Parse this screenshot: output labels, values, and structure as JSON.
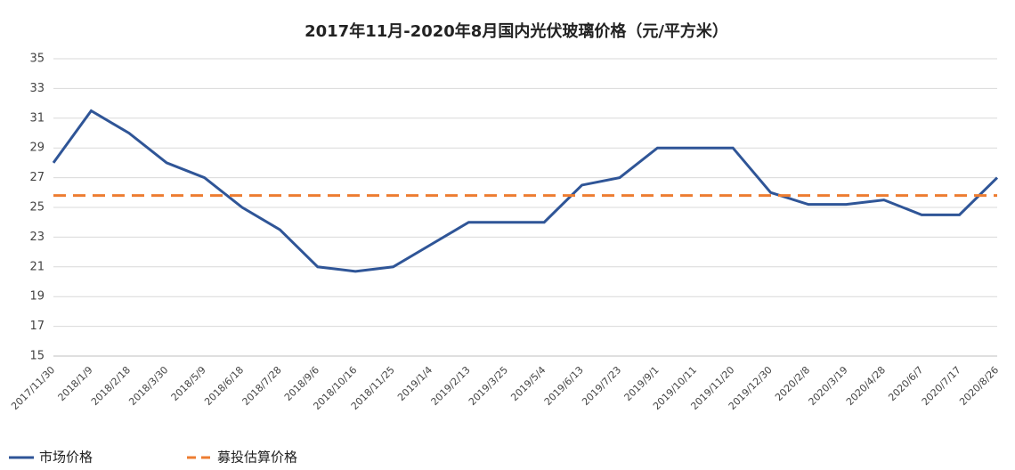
{
  "chart_data": {
    "type": "line",
    "title": "2017年11月-2020年8月国内光伏玻璃价格（元/平方米）",
    "categories": [
      "2017/11/30",
      "2018/1/9",
      "2018/2/18",
      "2018/3/30",
      "2018/5/9",
      "2018/6/18",
      "2018/7/28",
      "2018/9/6",
      "2018/10/16",
      "2018/11/25",
      "2019/1/4",
      "2019/2/13",
      "2019/3/25",
      "2019/5/4",
      "2019/6/13",
      "2019/7/23",
      "2019/9/1",
      "2019/10/11",
      "2019/11/20",
      "2019/12/30",
      "2020/2/8",
      "2020/3/19",
      "2020/4/28",
      "2020/6/7",
      "2020/7/17",
      "2020/8/26"
    ],
    "series": [
      {
        "name": "市场价格",
        "color": "#2f5597",
        "dashed": false,
        "values": [
          28,
          31.5,
          30,
          28,
          27,
          25,
          23.5,
          21,
          20.7,
          21,
          22.5,
          24,
          24,
          24,
          26.5,
          27,
          29,
          29,
          29,
          26,
          25.2,
          25.2,
          25.5,
          24.5,
          24.5,
          27
        ]
      },
      {
        "name": "募投估算价格",
        "color": "#ed7d31",
        "dashed": true,
        "values": [
          25.8,
          25.8,
          25.8,
          25.8,
          25.8,
          25.8,
          25.8,
          25.8,
          25.8,
          25.8,
          25.8,
          25.8,
          25.8,
          25.8,
          25.8,
          25.8,
          25.8,
          25.8,
          25.8,
          25.8,
          25.8,
          25.8,
          25.8,
          25.8,
          25.8,
          25.8
        ]
      }
    ],
    "ylim": [
      15,
      35
    ],
    "yticks": [
      15,
      17,
      19,
      21,
      23,
      25,
      27,
      29,
      31,
      33,
      35
    ],
    "grid": true
  }
}
